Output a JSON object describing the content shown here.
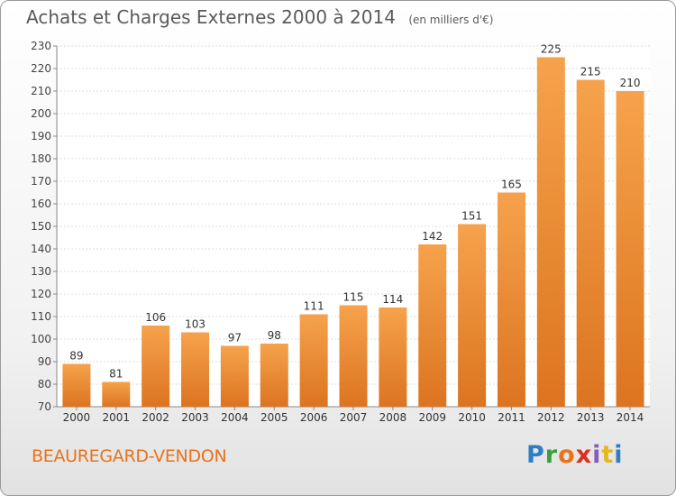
{
  "header": {
    "title": "Achats et Charges Externes 2000 à 2014",
    "subtitle": "(en milliers d'€)"
  },
  "footer": {
    "town": "BEAUREGARD-VENDON",
    "logo": [
      "P",
      "r",
      "o",
      "x",
      "i",
      "t",
      "i"
    ]
  },
  "colors": {
    "bar_light": "#f6a24c",
    "bar_dark": "#dc7420",
    "town": "#e8731a"
  },
  "chart_data": {
    "type": "bar",
    "categories": [
      "2000",
      "2001",
      "2002",
      "2003",
      "2004",
      "2005",
      "2006",
      "2007",
      "2008",
      "2009",
      "2010",
      "2011",
      "2012",
      "2013",
      "2014"
    ],
    "values": [
      89,
      81,
      106,
      103,
      97,
      98,
      111,
      115,
      114,
      142,
      151,
      165,
      225,
      215,
      210
    ],
    "ylim": [
      70,
      230
    ],
    "yticks": [
      70,
      80,
      90,
      100,
      110,
      120,
      130,
      140,
      150,
      160,
      170,
      180,
      190,
      200,
      210,
      220,
      230
    ],
    "grid": true,
    "data_labels": true
  }
}
